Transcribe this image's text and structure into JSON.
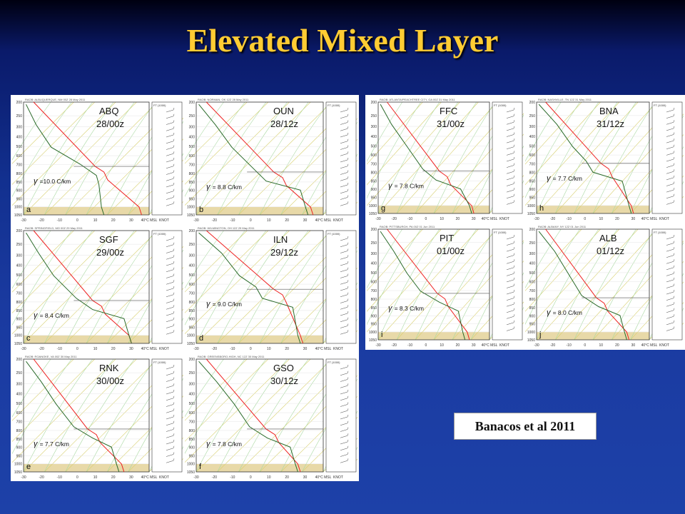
{
  "title": "Elevated Mixed Layer",
  "citation": "Banacos et al 2011",
  "colors": {
    "temp": "#ee2222",
    "dewpoint": "#2a6a2a",
    "dry_adiabat": "#d8d070",
    "moist_adiabat": "#a8d8a0",
    "surface": "#e8d9a8"
  },
  "axes": {
    "pressure_ticks": [
      "200",
      "250",
      "300",
      "400",
      "500",
      "600",
      "700",
      "800",
      "850",
      "900",
      "950",
      "1000",
      "1050"
    ],
    "temp_ticks": [
      "-30",
      "-20",
      "-10",
      "0",
      "10",
      "20",
      "30",
      "40°C MSL"
    ],
    "knot_label": "KNOT",
    "height_label": "FT (1000)"
  },
  "soundings": [
    {
      "letter": "a",
      "station": "ABQ",
      "time": "28/00z",
      "lapse": "=10.0 C/km",
      "header": "RAOB:  ALBUQUERQUE, NM 00Z 28 May 2011"
    },
    {
      "letter": "b",
      "station": "OUN",
      "time": "28/12z",
      "lapse": "= 8.8 C/km",
      "header": "RAOB:  NORMAN, OK 12Z 28 May 2011"
    },
    {
      "letter": "c",
      "station": "SGF",
      "time": "29/00z",
      "lapse": "= 8.4 C/km",
      "header": "RAOB:  SPRINGFIELD, MO 00Z 29 May 2011"
    },
    {
      "letter": "d",
      "station": "ILN",
      "time": "29/12z",
      "lapse": "= 9.0 C/km",
      "header": "RAOB:  WILMINGTON, OH 12Z 29 May 2011"
    },
    {
      "letter": "e",
      "station": "RNK",
      "time": "30/00z",
      "lapse": "= 7.7 C/km",
      "header": "RAOB:  ROANOKE, VA 00Z 30 May 2011"
    },
    {
      "letter": "f",
      "station": "GSO",
      "time": "30/12z",
      "lapse": "= 7.8 C/km",
      "header": "RAOB:  GREENSBORO-HIGH, NC 12Z 30 May 2011"
    },
    {
      "letter": "g",
      "station": "FFC",
      "time": "31/00z",
      "lapse": "= 7.8 C/km",
      "header": "RAOB:  ATLANTA/PEACHTREE CITY, GA 00Z 31 May 2011"
    },
    {
      "letter": "h",
      "station": "BNA",
      "time": "31/12z",
      "lapse": "= 7.7 C/km",
      "header": "RAOB:  NASHVILLE, TN 12Z 31 May 2011"
    },
    {
      "letter": "i",
      "station": "PIT",
      "time": "01/00z",
      "lapse": "= 8.3 C/km",
      "header": "RAOB:  PITTSBURGH, PA 00Z 01 Jun 2011"
    },
    {
      "letter": "j",
      "station": "ALB",
      "time": "01/12z",
      "lapse": "= 8.0 C/km",
      "header": "RAOB:  ALBANY, NY 12Z 01 Jun 2011"
    }
  ]
}
